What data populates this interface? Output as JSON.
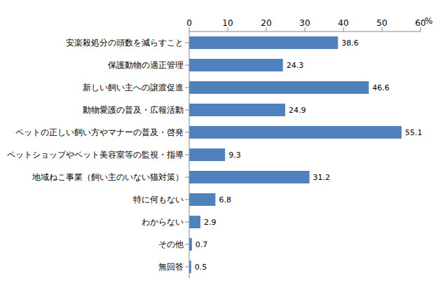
{
  "chart_data": {
    "type": "bar",
    "orientation": "horizontal",
    "categories": [
      "安楽殺処分の頭数を減らすこと",
      "保護動物の適正管理",
      "新しい飼い主への譲渡促進",
      "動物愛護の普及・広報活動",
      "ペットの正しい飼い方やマナーの普及・啓発",
      "ペットショップやペット美容室等の監視・指導",
      "地域ねこ事業（飼い主のいない猫対策）",
      "特に何もない",
      "わからない",
      "その他",
      "無回答"
    ],
    "values": [
      38.6,
      24.3,
      46.6,
      24.9,
      55.1,
      9.3,
      31.2,
      6.8,
      2.9,
      0.7,
      0.5
    ],
    "color": "#4f81bd",
    "xlabel": "%",
    "xlim": [
      0,
      60
    ],
    "xticks": [
      0,
      10,
      20,
      30,
      40,
      50,
      60
    ],
    "grid": false,
    "data_labels": true
  }
}
